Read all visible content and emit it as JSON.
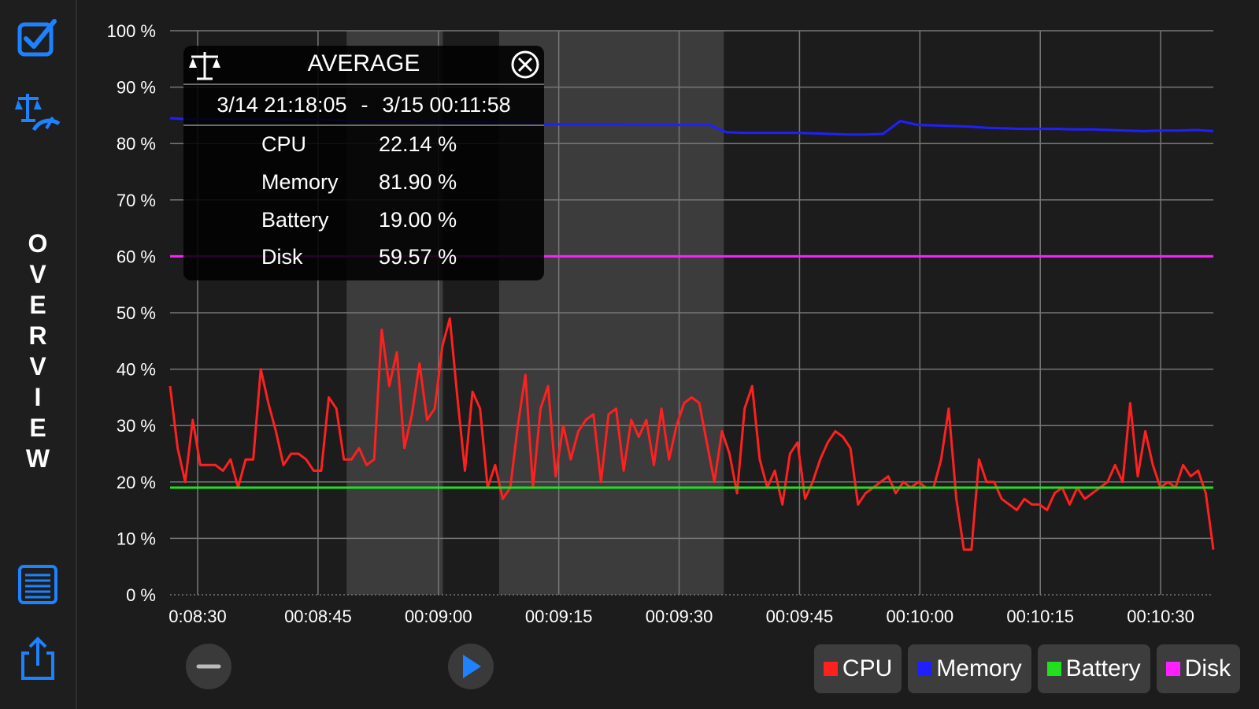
{
  "sidebar": {
    "vertical_title_letters": [
      "O",
      "V",
      "E",
      "R",
      "V",
      "I",
      "E",
      "W"
    ],
    "accent_color": "#1e82ff"
  },
  "avg_panel": {
    "title": "AVERAGE",
    "range_start": "3/14 21:18:05",
    "range_sep": "-",
    "range_end": "3/15 00:11:58",
    "rows": [
      {
        "label": "CPU",
        "value": "22.14 %"
      },
      {
        "label": "Memory",
        "value": "81.90 %"
      },
      {
        "label": "Battery",
        "value": "19.00 %"
      },
      {
        "label": "Disk",
        "value": "59.57 %"
      }
    ]
  },
  "legend": [
    {
      "label": "CPU",
      "color": "#ff2020"
    },
    {
      "label": "Memory",
      "color": "#2020ff"
    },
    {
      "label": "Battery",
      "color": "#20e020"
    },
    {
      "label": "Disk",
      "color": "#ff20ff"
    }
  ],
  "chart_data": {
    "type": "line",
    "x_start": "00:08:30",
    "x_end": "00:10:40",
    "xticks": [
      "0:08:30",
      "00:08:45",
      "00:09:00",
      "00:09:15",
      "00:09:30",
      "00:09:45",
      "00:10:00",
      "00:10:15",
      "00:10:30"
    ],
    "yticks": [
      "0 %",
      "10 %",
      "20 %",
      "30 %",
      "40 %",
      "50 %",
      "60 %",
      "70 %",
      "80 %",
      "90 %",
      "100 %"
    ],
    "ylim": [
      0,
      100
    ],
    "grid": true,
    "legend_position": "bottom-right",
    "highlight_ranges": [
      [
        "00:08:52",
        "00:09:04"
      ],
      [
        "00:09:11",
        "00:09:39"
      ]
    ],
    "series": [
      {
        "name": "CPU",
        "color": "#ff2020",
        "values": [
          37,
          26,
          20,
          31,
          23,
          23,
          23,
          22,
          24,
          19,
          24,
          24,
          40,
          34,
          29,
          23,
          25,
          25,
          24,
          22,
          22,
          35,
          33,
          24,
          24,
          26,
          23,
          24,
          47,
          37,
          43,
          26,
          32,
          41,
          31,
          33,
          44,
          49,
          35,
          22,
          36,
          33,
          19,
          23,
          17,
          19,
          30,
          39,
          19,
          33,
          37,
          21,
          30,
          24,
          29,
          31,
          32,
          20,
          32,
          33,
          22,
          31,
          28,
          31,
          23,
          33,
          24,
          30,
          34,
          35,
          34,
          27,
          20,
          29,
          25,
          18,
          33,
          37,
          24,
          19,
          22,
          16,
          25,
          27,
          17,
          20,
          24,
          27,
          29,
          28,
          26,
          16,
          18,
          19,
          20,
          21,
          18,
          20,
          19,
          20,
          19,
          19,
          24,
          33,
          17,
          8,
          8,
          24,
          20,
          20,
          17,
          16,
          15,
          17,
          16,
          16,
          15,
          18,
          19,
          16,
          19,
          17,
          18,
          19,
          20,
          23,
          20,
          34,
          21,
          29,
          23,
          19,
          20,
          19,
          23,
          21,
          22,
          18,
          8
        ],
        "points_note": ""
      },
      {
        "name": "Memory",
        "color": "#2020ff",
        "values": [
          84.5,
          84.3,
          84.3,
          84.3,
          84.3,
          84.3,
          84.3,
          84.2,
          84.2,
          84.2,
          84.1,
          84.1,
          84.0,
          84.0,
          84.0,
          83.9,
          83.9,
          83.9,
          83.9,
          83.8,
          83.8,
          83.5,
          83.4,
          83.4,
          83.4,
          83.4,
          83.4,
          83.3,
          83.3,
          83.3,
          83.3,
          83.3,
          82.0,
          81.9,
          81.9,
          81.9,
          81.9,
          81.8,
          81.7,
          81.6,
          81.6,
          81.7,
          84.0,
          83.3,
          83.2,
          83.1,
          83.0,
          82.8,
          82.7,
          82.6,
          82.6,
          82.6,
          82.5,
          82.5,
          82.4,
          82.3,
          82.2,
          82.3,
          82.3,
          82.4,
          82.2
        ],
        "points_note": ""
      },
      {
        "name": "Battery",
        "color": "#20e020",
        "values": [
          19,
          19
        ],
        "points_note": ""
      },
      {
        "name": "Disk",
        "color": "#ff20ff",
        "values": [
          60,
          60
        ],
        "points_note": ""
      }
    ]
  }
}
